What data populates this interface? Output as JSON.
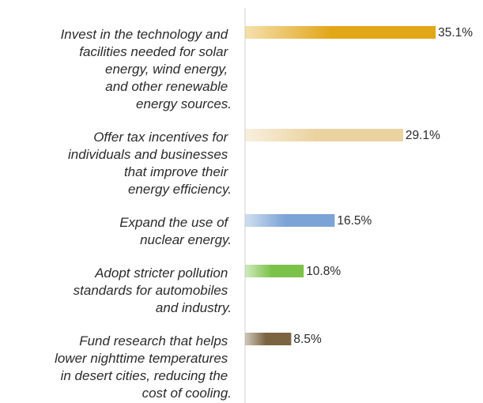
{
  "chart_data": {
    "type": "bar",
    "orientation": "horizontal",
    "categories": [
      "Invest in the technology and\nfacilities needed for solar\nenergy, wind energy,\nand other renewable\nenergy sources.",
      "Offer tax incentives for\nindividuals and businesses\nthat improve their\nenergy efficiency.",
      "Expand the use of\nnuclear energy.",
      "Adopt stricter pollution\nstandards for automobiles\nand industry.",
      "Fund research that helps\nlower nighttime temperatures\nin desert cities, reducing the\ncost of cooling."
    ],
    "values": [
      35.1,
      29.1,
      16.5,
      10.8,
      8.5
    ],
    "value_labels": [
      "35.1%",
      "29.1%",
      "16.5%",
      "10.8%",
      "8.5%"
    ],
    "colors": [
      "#e2a619",
      "#ebd3a0",
      "#7ba3d6",
      "#7cc24a",
      "#7a6441"
    ]
  }
}
